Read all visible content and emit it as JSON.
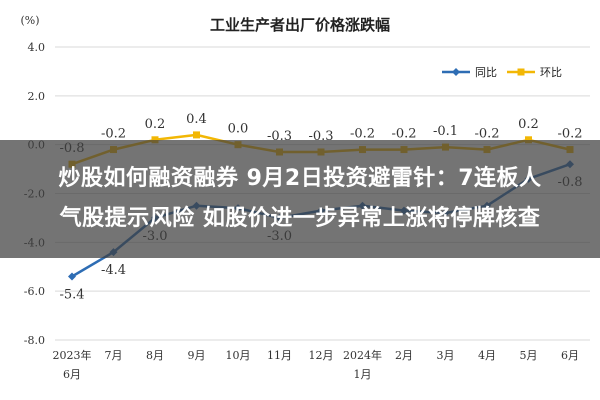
{
  "chart_data": {
    "type": "line",
    "title": "工业生产者出厂价格涨跌幅",
    "ylabel": "(%)",
    "ylim": [
      -8.0,
      4.0
    ],
    "yticks": [
      4.0,
      2.0,
      0.0,
      -2.0,
      -4.0,
      -6.0,
      -8.0
    ],
    "ytick_labels": [
      "4.0",
      "2.0",
      "0.0",
      "-2.0",
      "-4.0",
      "-6.0",
      "-8.0"
    ],
    "categories": [
      "2023年6月",
      "7月",
      "8月",
      "9月",
      "10月",
      "11月",
      "12月",
      "2024年1月",
      "2月",
      "3月",
      "4月",
      "5月",
      "6月"
    ],
    "x_tick_top": [
      "2023年",
      "7月",
      "8月",
      "9月",
      "10月",
      "11月",
      "12月",
      "2024年",
      "2月",
      "3月",
      "4月",
      "5月",
      "6月"
    ],
    "x_tick_bottom": [
      "6月",
      "",
      "",
      "",
      "",
      "",
      "",
      "1月",
      "",
      "",
      "",
      "",
      ""
    ],
    "legend_position": "top-right",
    "grid": "horizontal",
    "series": [
      {
        "name": "同比",
        "color": "#2e6db4",
        "values": [
          -5.4,
          -4.4,
          -3.0,
          -2.5,
          -2.6,
          -3.0,
          -2.7,
          -2.5,
          -2.7,
          -2.8,
          -2.5,
          -1.4,
          -0.8
        ],
        "labels": [
          "-5.4",
          "-4.4",
          "-3.0",
          "",
          "",
          "-3.0",
          "",
          "",
          "",
          "",
          "",
          "",
          "-0.8"
        ]
      },
      {
        "name": "环比",
        "color": "#f2b705",
        "values": [
          -0.8,
          -0.2,
          0.2,
          0.4,
          0.0,
          -0.3,
          -0.3,
          -0.2,
          -0.2,
          -0.1,
          -0.2,
          0.2,
          -0.2
        ],
        "labels": [
          "-0.8",
          "-0.2",
          "0.2",
          "0.4",
          "0.0",
          "-0.3",
          "-0.3",
          "-0.2",
          "-0.2",
          "-0.1",
          "-0.2",
          "0.2",
          "-0.2"
        ]
      }
    ]
  },
  "headline": {
    "line1": "炒股如何融资融券 9月2日投资避雷针：7连板人",
    "line2": "气股提示风险 如股价进一步异常上涨将停牌核查"
  },
  "colors": {
    "grid": "#d9d9d9",
    "axis_text": "#333333",
    "band": "rgba(62,62,62,0.72)"
  }
}
